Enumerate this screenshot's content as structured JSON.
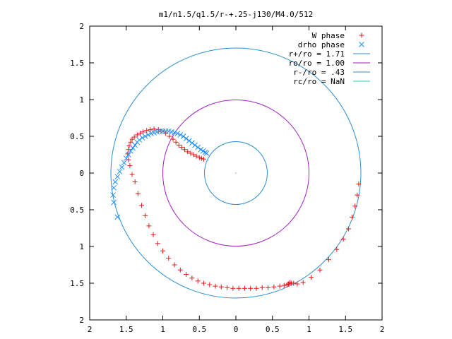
{
  "chart_data": {
    "type": "scatter",
    "title": "m1/n1.5/q1.5/r-+.25-j130/M4.0/512",
    "xlabel": "",
    "ylabel": "",
    "xlim": [
      -2,
      2
    ],
    "ylim": [
      -2,
      2
    ],
    "x_tick_values": [
      -2,
      -1.5,
      -1,
      -0.5,
      0,
      0.5,
      1,
      1.5,
      2
    ],
    "x_tick_labels": [
      "2",
      "1.5",
      "1",
      "0.5",
      "0",
      "0.5",
      "1",
      "1.5",
      "2"
    ],
    "y_tick_values": [
      2,
      1.5,
      1,
      0.5,
      0,
      -0.5,
      -1,
      -1.5,
      -2
    ],
    "y_tick_labels": [
      "2",
      "1.5",
      "1",
      "0.5",
      "0",
      "0.5",
      "1",
      "1.5",
      "2"
    ],
    "grid": false,
    "legend_position": "top-right",
    "legend": [
      {
        "label": "W phase",
        "marker": "plus",
        "color": "#e41a1c"
      },
      {
        "label": "drho phase",
        "marker": "cross",
        "color": "#1e8fff"
      },
      {
        "label": "r+/ro = 1.71",
        "marker": "line",
        "color": "#2c8fd0"
      },
      {
        "label": "ro/ro = 1.00",
        "marker": "line",
        "color": "#a020c0"
      },
      {
        "label": "r-/ro = .43",
        "marker": "line",
        "color": "#2c8fd0"
      },
      {
        "label": "rc/ro = NaN",
        "marker": "line",
        "color": "#20c8c8"
      }
    ],
    "circles": [
      {
        "name": "r+/ro = 1.71",
        "radius": 1.71,
        "color": "#2c8fd0"
      },
      {
        "name": "ro/ro = 1.00",
        "radius": 1.0,
        "color": "#a020c0"
      },
      {
        "name": "r-/ro = .43",
        "radius": 0.43,
        "color": "#2c8fd0"
      }
    ],
    "series": [
      {
        "name": "W phase",
        "marker": "plus",
        "color": "#e41a1c",
        "x": [
          1.68,
          1.66,
          1.63,
          1.59,
          1.54,
          1.47,
          1.38,
          1.27,
          1.15,
          1.03,
          0.92,
          0.84,
          0.79,
          0.76,
          0.74,
          0.72,
          0.7,
          0.66,
          0.6,
          0.52,
          0.44,
          0.36,
          0.28,
          0.2,
          0.12,
          0.04,
          -0.04,
          -0.12,
          -0.2,
          -0.28,
          -0.36,
          -0.44,
          -0.52,
          -0.6,
          -0.68,
          -0.76,
          -0.84,
          -0.92,
          -1.0,
          -1.07,
          -1.13,
          -1.19,
          -1.24,
          -1.29,
          -1.34,
          -1.38,
          -1.42,
          -1.45,
          -1.47,
          -1.48,
          -1.47,
          -1.46,
          -1.44,
          -1.42,
          -1.39,
          -1.35,
          -1.31,
          -1.27,
          -1.22,
          -1.17,
          -1.12,
          -1.06,
          -1.01,
          -0.96,
          -0.91,
          -0.86,
          -0.82,
          -0.78,
          -0.74,
          -0.7,
          -0.66,
          -0.62,
          -0.58,
          -0.54,
          -0.5,
          -0.47,
          -0.44
        ],
        "y": [
          -0.15,
          -0.3,
          -0.45,
          -0.6,
          -0.76,
          -0.9,
          -1.04,
          -1.18,
          -1.32,
          -1.42,
          -1.49,
          -1.51,
          -1.5,
          -1.5,
          -1.49,
          -1.51,
          -1.52,
          -1.53,
          -1.54,
          -1.55,
          -1.56,
          -1.56,
          -1.57,
          -1.57,
          -1.57,
          -1.57,
          -1.57,
          -1.56,
          -1.55,
          -1.54,
          -1.52,
          -1.5,
          -1.47,
          -1.43,
          -1.38,
          -1.32,
          -1.25,
          -1.16,
          -1.06,
          -0.96,
          -0.84,
          -0.72,
          -0.58,
          -0.44,
          -0.28,
          -0.12,
          -0.02,
          0.1,
          0.18,
          0.26,
          0.32,
          0.37,
          0.42,
          0.46,
          0.49,
          0.52,
          0.54,
          0.56,
          0.58,
          0.59,
          0.6,
          0.59,
          0.57,
          0.54,
          0.5,
          0.46,
          0.42,
          0.38,
          0.35,
          0.32,
          0.29,
          0.27,
          0.25,
          0.23,
          0.21,
          0.2,
          0.19
        ]
      },
      {
        "name": "drho phase",
        "marker": "cross",
        "color": "#1e8fff",
        "x": [
          -1.62,
          -1.67,
          -1.68,
          -1.67,
          -1.65,
          -1.62,
          -1.59,
          -1.56,
          -1.53,
          -1.5,
          -1.47,
          -1.44,
          -1.41,
          -1.38,
          -1.35,
          -1.32,
          -1.28,
          -1.24,
          -1.2,
          -1.16,
          -1.12,
          -1.08,
          -1.04,
          -1.0,
          -0.96,
          -0.92,
          -0.88,
          -0.84,
          -0.8,
          -0.76,
          -0.72,
          -0.68,
          -0.64,
          -0.6,
          -0.56,
          -0.52,
          -0.48,
          -0.45,
          -0.42,
          -0.4
        ],
        "y": [
          -0.6,
          -0.4,
          -0.3,
          -0.2,
          -0.12,
          -0.05,
          0.02,
          0.08,
          0.14,
          0.2,
          0.25,
          0.3,
          0.34,
          0.38,
          0.42,
          0.45,
          0.48,
          0.5,
          0.52,
          0.54,
          0.55,
          0.56,
          0.57,
          0.57,
          0.57,
          0.57,
          0.56,
          0.55,
          0.54,
          0.52,
          0.5,
          0.47,
          0.44,
          0.41,
          0.38,
          0.35,
          0.32,
          0.3,
          0.28,
          0.27
        ]
      }
    ]
  }
}
